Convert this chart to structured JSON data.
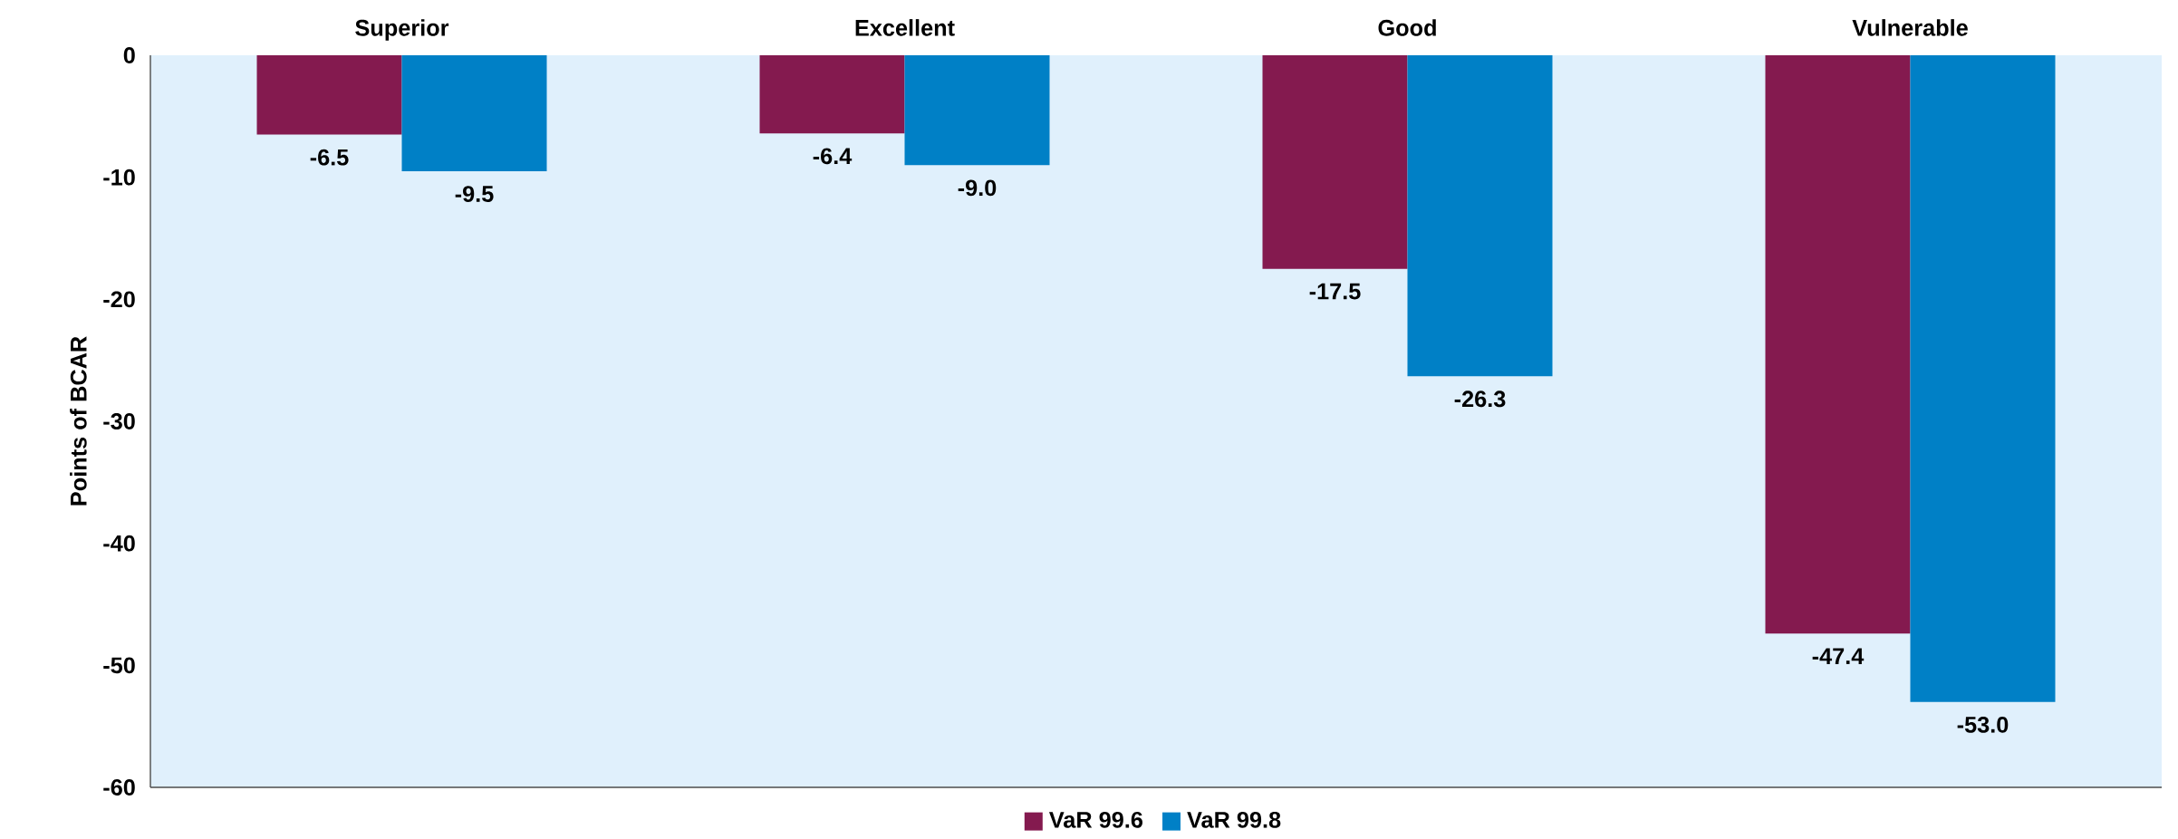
{
  "chart_data": {
    "type": "bar",
    "ylabel": "Points of  BCAR",
    "categories": [
      "Superior",
      "Excellent",
      "Good",
      "Vulnerable"
    ],
    "series": [
      {
        "name": "VaR 99.6",
        "color": "#841a4f",
        "values": [
          -6.5,
          -6.4,
          -17.5,
          -47.4
        ],
        "value_labels": [
          "-6.5",
          "-6.4",
          "-17.5",
          "-47.4"
        ]
      },
      {
        "name": "VaR 99.8",
        "color": "#0080c6",
        "values": [
          -9.5,
          -9.0,
          -26.3,
          -53.0
        ],
        "value_labels": [
          "-9.5",
          "-9.0",
          "-26.3",
          "-53.0"
        ]
      }
    ],
    "ylim": [
      -60,
      0
    ],
    "yticks": [
      -60,
      -50,
      -40,
      -30,
      -20,
      -10,
      0
    ],
    "grid": false,
    "legend": "bottom"
  }
}
